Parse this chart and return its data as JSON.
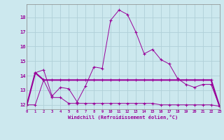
{
  "xlabel": "Windchill (Refroidissement éolien,°C)",
  "background_color": "#cce8ee",
  "grid_color": "#b0d0d8",
  "line_color": "#990099",
  "hours": [
    0,
    1,
    2,
    3,
    4,
    5,
    6,
    7,
    8,
    9,
    10,
    11,
    12,
    13,
    14,
    15,
    16,
    17,
    18,
    19,
    20,
    21,
    22,
    23
  ],
  "temp_line": [
    12.0,
    14.2,
    14.4,
    12.6,
    13.2,
    13.1,
    12.2,
    13.3,
    14.6,
    14.5,
    17.8,
    18.5,
    18.2,
    17.0,
    15.5,
    15.8,
    15.1,
    14.8,
    13.8,
    13.4,
    13.2,
    13.4,
    13.4,
    11.9
  ],
  "min_line": [
    12.0,
    12.0,
    13.7,
    12.5,
    12.5,
    12.1,
    12.1,
    12.1,
    12.1,
    12.1,
    12.1,
    12.1,
    12.1,
    12.1,
    12.1,
    12.1,
    12.0,
    12.0,
    12.0,
    12.0,
    12.0,
    12.0,
    12.0,
    11.9
  ],
  "max_line": [
    12.0,
    14.2,
    13.7,
    13.7,
    13.7,
    13.7,
    13.7,
    13.7,
    13.7,
    13.7,
    13.7,
    13.7,
    13.7,
    13.7,
    13.7,
    13.7,
    13.7,
    13.7,
    13.7,
    13.7,
    13.7,
    13.7,
    13.7,
    11.9
  ],
  "ylim": [
    11.7,
    18.9
  ],
  "yticks": [
    12,
    13,
    14,
    15,
    16,
    17,
    18
  ],
  "xlim": [
    0,
    23
  ]
}
